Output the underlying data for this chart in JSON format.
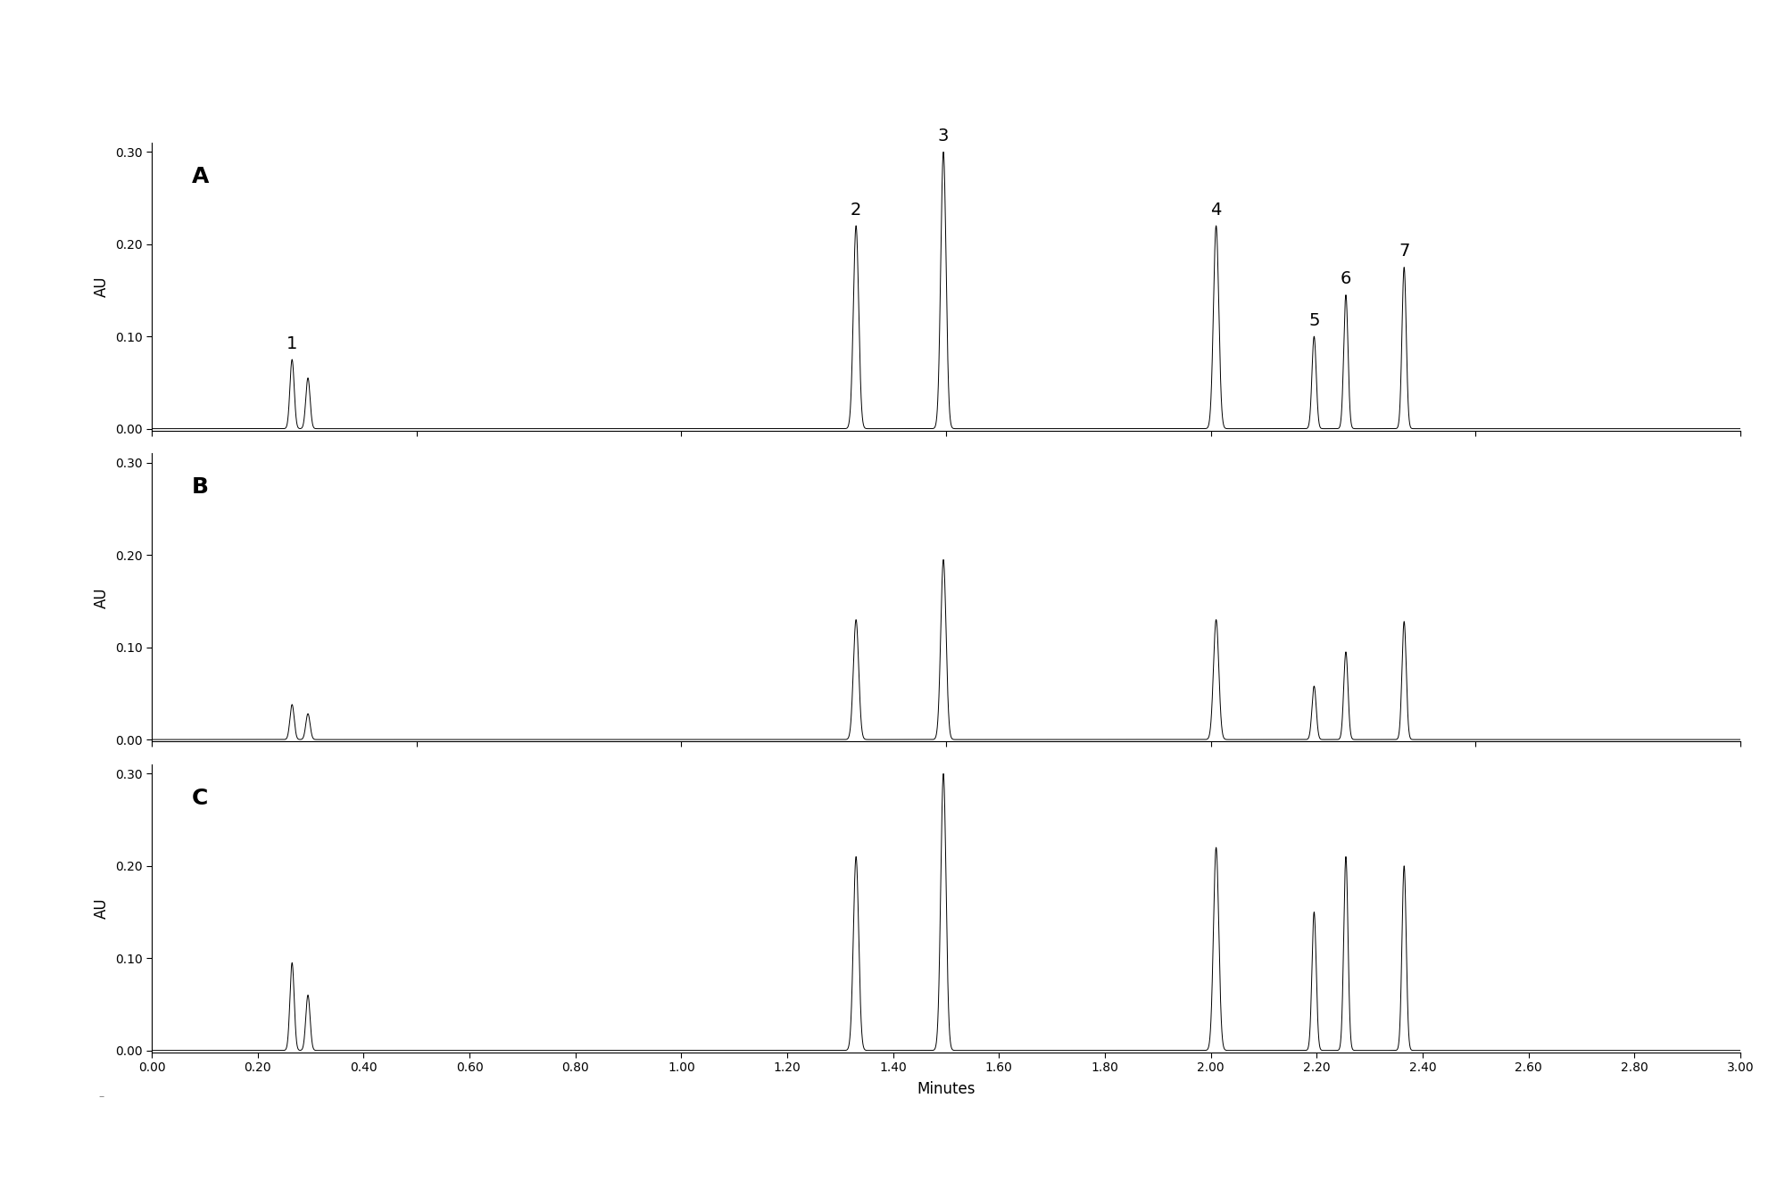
{
  "x_min": 0.0,
  "x_max": 3.0,
  "y_min": 0.0,
  "y_max": 0.3,
  "xlabel": "Minutes",
  "ylabel": "AU",
  "panels": [
    "A",
    "B",
    "C"
  ],
  "peak_positions": [
    0.265,
    0.295,
    1.33,
    1.495,
    2.01,
    2.195,
    2.255,
    2.365
  ],
  "peak_widths": [
    0.004,
    0.004,
    0.005,
    0.005,
    0.005,
    0.004,
    0.004,
    0.004
  ],
  "peak_heights_A": [
    0.075,
    0.055,
    0.22,
    0.3,
    0.22,
    0.1,
    0.145,
    0.175
  ],
  "peak_heights_B": [
    0.038,
    0.028,
    0.13,
    0.195,
    0.13,
    0.058,
    0.095,
    0.128
  ],
  "peak_heights_C": [
    0.095,
    0.06,
    0.21,
    0.3,
    0.22,
    0.15,
    0.21,
    0.2
  ],
  "peak_label_names": [
    "1",
    "2",
    "3",
    "4",
    "5",
    "6",
    "7"
  ],
  "peak_label_indices": [
    0,
    2,
    3,
    4,
    5,
    6,
    7
  ],
  "background_color": "#ffffff",
  "line_color": "#000000",
  "line_width": 0.7,
  "tick_fontsize": 10,
  "label_fontsize": 12,
  "panel_label_fontsize": 18,
  "peak_label_fontsize": 14,
  "xtick_labels": [
    "0.00",
    "0.20",
    "0.40",
    "0.60",
    "0.80",
    "1.00",
    "1.20",
    "1.40",
    "1.60",
    "1.80",
    "2.00",
    "2.20",
    "2.40",
    "2.60",
    "2.80",
    "3.00"
  ],
  "xtick_values": [
    0.0,
    0.2,
    0.4,
    0.6,
    0.8,
    1.0,
    1.2,
    1.4,
    1.6,
    1.8,
    2.0,
    2.2,
    2.4,
    2.6,
    2.8,
    3.0
  ],
  "yticks": [
    0.0,
    0.1,
    0.2,
    0.3
  ]
}
